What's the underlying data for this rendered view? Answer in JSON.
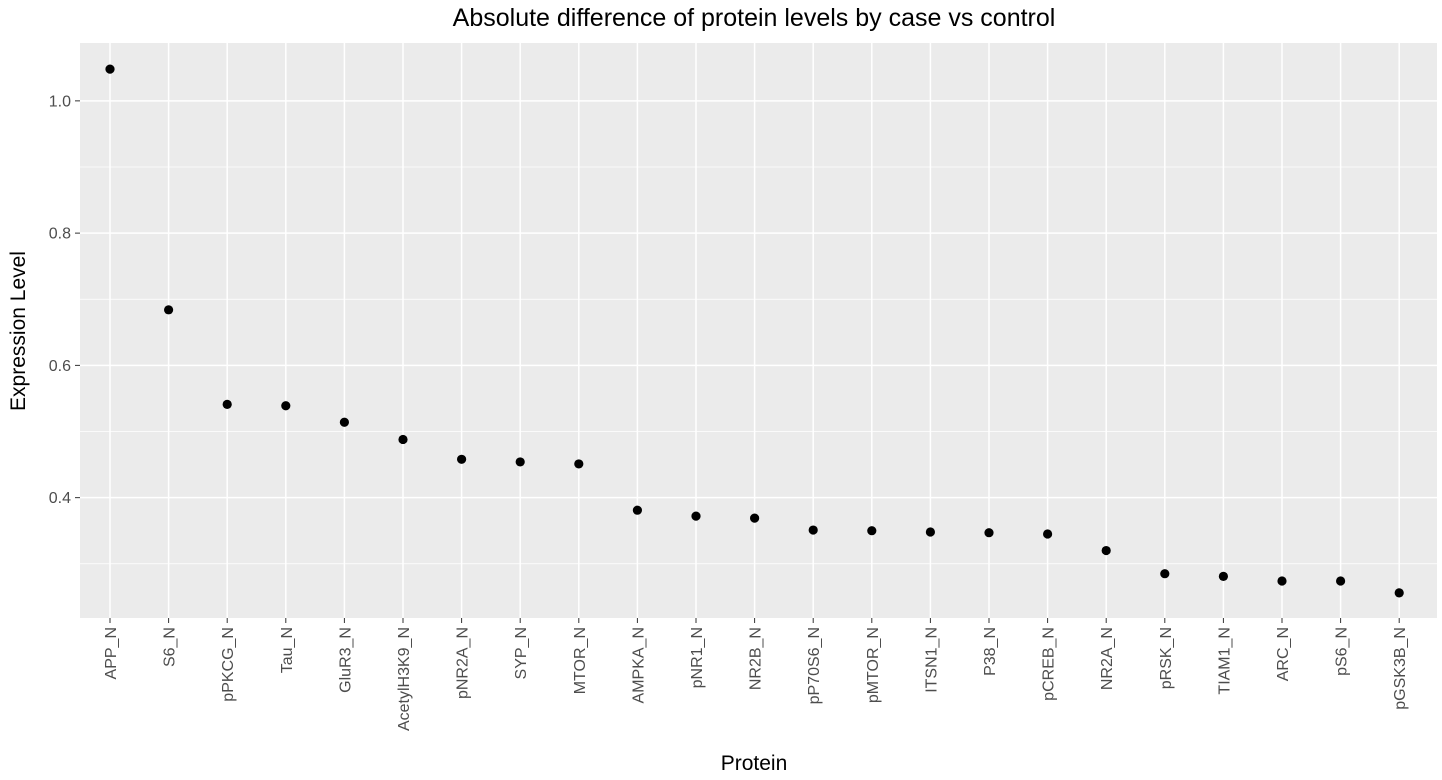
{
  "chart_data": {
    "type": "scatter",
    "title": "Absolute difference of protein levels by case vs control",
    "xlabel": "Protein",
    "ylabel": "Expression Level",
    "categories": [
      "APP_N",
      "S6_N",
      "pPKCG_N",
      "Tau_N",
      "GluR3_N",
      "AcetylH3K9_N",
      "pNR2A_N",
      "SYP_N",
      "MTOR_N",
      "AMPKA_N",
      "pNR1_N",
      "NR2B_N",
      "pP70S6_N",
      "pMTOR_N",
      "ITSN1_N",
      "P38_N",
      "pCREB_N",
      "NR2A_N",
      "pRSK_N",
      "TIAM1_N",
      "ARC_N",
      "pS6_N",
      "pGSK3B_N"
    ],
    "values": [
      1.048,
      0.684,
      0.541,
      0.539,
      0.514,
      0.488,
      0.458,
      0.454,
      0.451,
      0.381,
      0.372,
      0.369,
      0.351,
      0.35,
      0.348,
      0.347,
      0.345,
      0.32,
      0.285,
      0.281,
      0.274,
      0.274,
      0.256
    ],
    "yticks": [
      0.4,
      0.6,
      0.8,
      1.0
    ],
    "ytick_labels": [
      "0.4",
      "0.6",
      "0.8",
      "1.0"
    ],
    "ylim": [
      0.218,
      1.0875
    ],
    "grid": true,
    "legend": "none",
    "colors": {
      "panel_background": "#ebebeb",
      "grid": "#ffffff",
      "point": "#000000",
      "tick_text": "#4d4d4d",
      "tick_mark": "#333333"
    }
  }
}
